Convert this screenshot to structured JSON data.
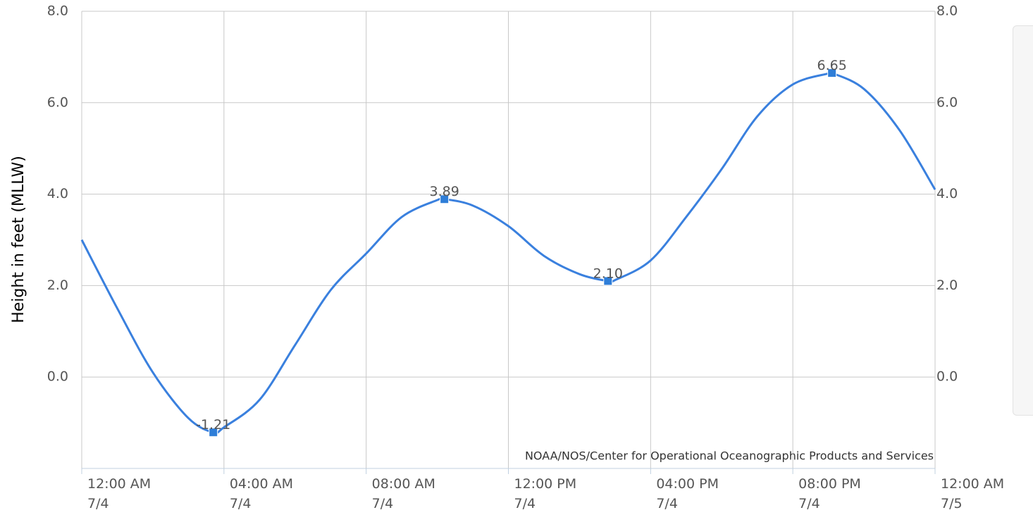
{
  "chart_data": {
    "type": "line",
    "y_label": "Height in feet (MLLW)",
    "credits": "NOAA/NOS/Center for Operational Oceanographic Products and Services",
    "color": "#3a80de",
    "x": [
      0,
      1,
      2,
      3,
      3.7,
      4,
      5,
      6,
      7,
      8,
      9,
      10,
      10.2,
      11,
      12,
      13,
      14,
      14.8,
      15,
      16,
      17,
      18,
      19,
      20,
      21,
      21.1,
      22,
      23,
      24
    ],
    "values": [
      3.0,
      1.5,
      0.1,
      -0.9,
      -1.21,
      -1.1,
      -0.5,
      0.7,
      1.9,
      2.7,
      3.5,
      3.87,
      3.89,
      3.75,
      3.3,
      2.65,
      2.25,
      2.1,
      2.12,
      2.55,
      3.5,
      4.55,
      5.7,
      6.4,
      6.64,
      6.65,
      6.3,
      5.4,
      4.1
    ],
    "markers": {
      "color": "#2f7ed8",
      "x": [
        3.7,
        10.2,
        14.8,
        21.1
      ],
      "values": [
        -1.21,
        3.89,
        2.1,
        6.65
      ],
      "value_labels": [
        "-1.21",
        "3.89",
        "2.10",
        "6.65"
      ]
    },
    "xlim": [
      0,
      24
    ],
    "xticks": [
      {
        "value": 0,
        "label": "12:00 AM\n7/4"
      },
      {
        "value": 4,
        "label": "04:00 AM\n7/4"
      },
      {
        "value": 8,
        "label": "08:00 AM\n7/4"
      },
      {
        "value": 12,
        "label": "12:00 PM\n7/4"
      },
      {
        "value": 16,
        "label": "04:00 PM\n7/4"
      },
      {
        "value": 20,
        "label": "08:00 PM\n7/4"
      },
      {
        "value": 24,
        "label": "12:00 AM\n7/5"
      }
    ],
    "ylim": [
      -2,
      8
    ],
    "yticks": [
      {
        "value": 0,
        "label": "0.0"
      },
      {
        "value": 2,
        "label": "2.0"
      },
      {
        "value": 4,
        "label": "4.0"
      },
      {
        "value": 6,
        "label": "6.0"
      },
      {
        "value": 8,
        "label": "8.0"
      }
    ],
    "grid": true
  }
}
